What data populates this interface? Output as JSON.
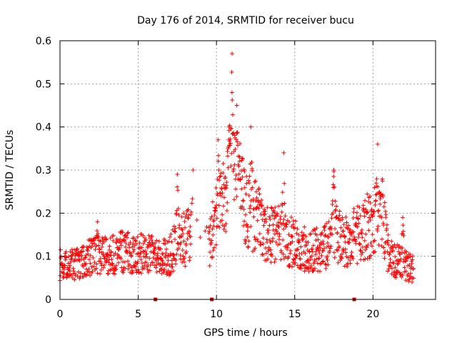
{
  "chart_data": {
    "type": "scatter",
    "title": "Day 176 of 2014, SRMTID for receiver bucu",
    "xlabel": "GPS time / hours",
    "ylabel": "SRMTID / TECUs",
    "xlim": [
      0,
      24
    ],
    "ylim": [
      0,
      0.6
    ],
    "x_ticks": [
      0,
      5,
      10,
      15,
      20
    ],
    "x_tick_labels": [
      "0",
      "5",
      "10",
      "15",
      "20"
    ],
    "y_ticks": [
      0,
      0.1,
      0.2,
      0.3,
      0.4,
      0.5,
      0.6
    ],
    "y_tick_labels": [
      "0",
      "0.1",
      "0.2",
      "0.3",
      "0.4",
      "0.5",
      "0.6"
    ],
    "grid": true,
    "marker": "plus",
    "color": "#ff0000",
    "zero_value_markers_x": [
      6.1,
      9.7,
      18.8
    ],
    "series": [
      {
        "name": "SRMTID",
        "profile": [
          {
            "x": 0.0,
            "y": 0.08
          },
          {
            "x": 1.0,
            "y": 0.08
          },
          {
            "x": 2.0,
            "y": 0.1
          },
          {
            "x": 3.0,
            "y": 0.1
          },
          {
            "x": 4.0,
            "y": 0.11
          },
          {
            "x": 5.0,
            "y": 0.11
          },
          {
            "x": 6.0,
            "y": 0.1
          },
          {
            "x": 7.0,
            "y": 0.1
          },
          {
            "x": 7.5,
            "y": 0.13
          },
          {
            "x": 8.0,
            "y": 0.14
          },
          {
            "x": 8.4,
            "y": 0.15
          },
          {
            "x": 9.5,
            "y": 0.12
          },
          {
            "x": 10.0,
            "y": 0.2
          },
          {
            "x": 10.5,
            "y": 0.24
          },
          {
            "x": 11.0,
            "y": 0.3
          },
          {
            "x": 11.5,
            "y": 0.25
          },
          {
            "x": 12.0,
            "y": 0.2
          },
          {
            "x": 12.5,
            "y": 0.2
          },
          {
            "x": 13.0,
            "y": 0.15
          },
          {
            "x": 14.0,
            "y": 0.15
          },
          {
            "x": 15.0,
            "y": 0.13
          },
          {
            "x": 16.0,
            "y": 0.11
          },
          {
            "x": 17.0,
            "y": 0.12
          },
          {
            "x": 17.5,
            "y": 0.18
          },
          {
            "x": 18.0,
            "y": 0.13
          },
          {
            "x": 19.0,
            "y": 0.15
          },
          {
            "x": 19.5,
            "y": 0.17
          },
          {
            "x": 20.0,
            "y": 0.17
          },
          {
            "x": 20.5,
            "y": 0.22
          },
          {
            "x": 21.0,
            "y": 0.1
          },
          {
            "x": 22.0,
            "y": 0.08
          },
          {
            "x": 22.6,
            "y": 0.07
          }
        ],
        "peaks": [
          {
            "x": 2.4,
            "y": 0.18
          },
          {
            "x": 7.5,
            "y": 0.29
          },
          {
            "x": 8.5,
            "y": 0.3
          },
          {
            "x": 10.1,
            "y": 0.37
          },
          {
            "x": 10.8,
            "y": 0.4
          },
          {
            "x": 11.0,
            "y": 0.57
          },
          {
            "x": 11.3,
            "y": 0.45
          },
          {
            "x": 12.2,
            "y": 0.4
          },
          {
            "x": 14.3,
            "y": 0.34
          },
          {
            "x": 17.5,
            "y": 0.3
          },
          {
            "x": 20.3,
            "y": 0.36
          },
          {
            "x": 21.9,
            "y": 0.19
          }
        ]
      }
    ]
  }
}
